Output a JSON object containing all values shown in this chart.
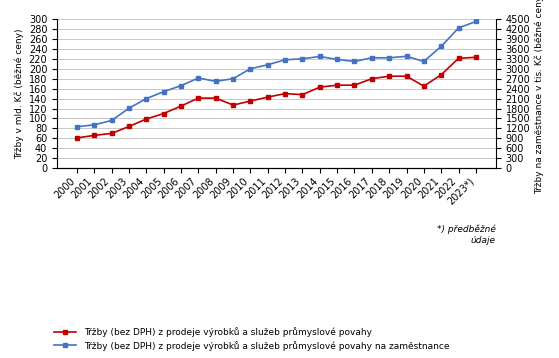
{
  "years": [
    "2000",
    "2001",
    "2002",
    "2003",
    "2004",
    "2005",
    "2006",
    "2007",
    "2008",
    "2009",
    "2010",
    "2011",
    "2012",
    "2013",
    "2014",
    "2015",
    "2016",
    "2017",
    "2018",
    "2019",
    "2020",
    "2021",
    "2022",
    "2023*)"
  ],
  "red_values": [
    61,
    66,
    70,
    84,
    99,
    110,
    125,
    141,
    141,
    127,
    135,
    143,
    150,
    148,
    163,
    167,
    167,
    180,
    185,
    185,
    165,
    188,
    221,
    223
  ],
  "blue_values": [
    1250,
    1310,
    1440,
    1810,
    2100,
    2310,
    2490,
    2720,
    2620,
    2700,
    3000,
    3120,
    3270,
    3300,
    3370,
    3280,
    3220,
    3330,
    3330,
    3375,
    3220,
    3675,
    4230,
    4425
  ],
  "ylabel_left": "Třžby v mld. Kč (běžné ceny)",
  "ylabel_right": "Třžby na zaměstnance v tis. Kč (běžné ceny)",
  "ylim_left": [
    0,
    300
  ],
  "ylim_right": [
    0,
    4500
  ],
  "yticks_left": [
    0,
    20,
    40,
    60,
    80,
    100,
    120,
    140,
    160,
    180,
    200,
    220,
    240,
    260,
    280,
    300
  ],
  "yticks_right": [
    0,
    300,
    600,
    900,
    1200,
    1500,
    1800,
    2100,
    2400,
    2700,
    3000,
    3300,
    3600,
    3900,
    4200,
    4500
  ],
  "legend1": "Třžby (bez DPH) z prodeje výrobků a služeb průmyslové povahy",
  "legend2": "Třžby (bez DPH) z prodeje výrobků a služeb průmyslové povahy na zaměstnance",
  "note": "*) předběžné\núdaje",
  "red_color": "#c00000",
  "blue_color": "#4472c4",
  "grid_color": "#bfbfbf",
  "bg_color": "#ffffff",
  "title_fontsize": 7,
  "axis_label_fontsize": 6.5,
  "tick_fontsize": 7,
  "legend_fontsize": 6.5,
  "note_fontsize": 6.5
}
